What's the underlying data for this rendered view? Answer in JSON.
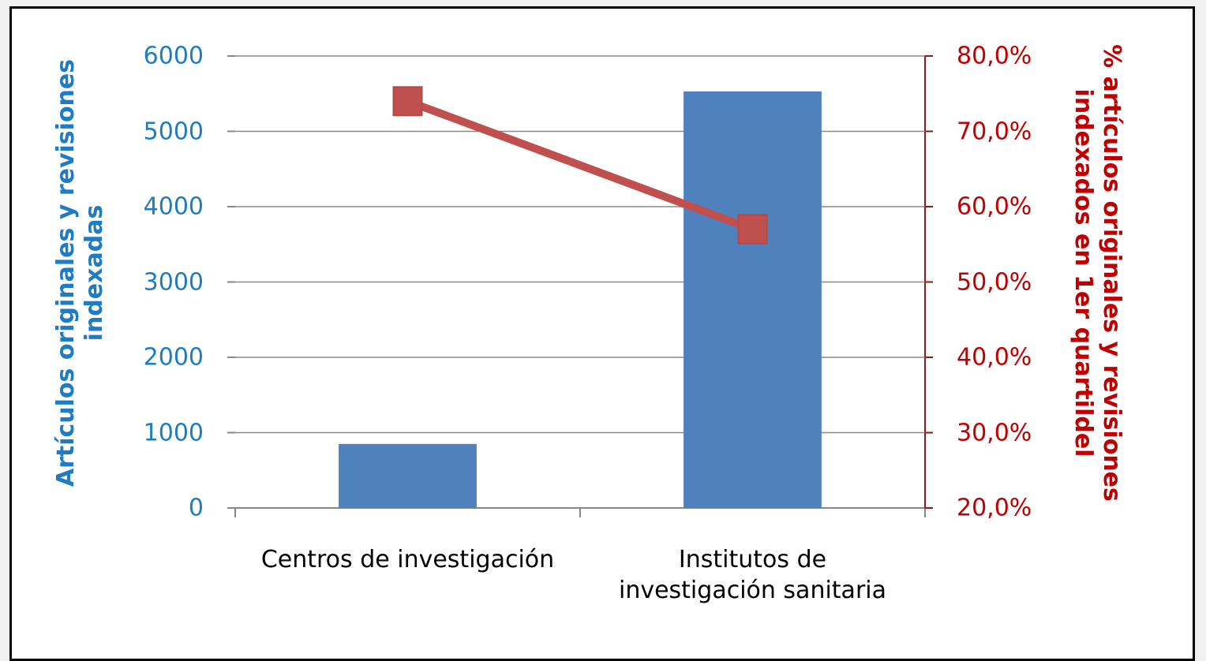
{
  "chart_data": {
    "type": "bar",
    "categories": [
      "Centros de investigación",
      "Institutos de\ninvestigación sanitaria"
    ],
    "ylabel": "Artículos originales y revisiones\nindexadas",
    "y2label": "% artículos originales y revisiones\nindexados en 1er quartildel",
    "ylim": [
      0,
      6000
    ],
    "yticks": [
      0,
      1000,
      2000,
      3000,
      4000,
      5000,
      6000
    ],
    "y2lim": [
      20,
      80
    ],
    "y2ticks": [
      {
        "value": 20,
        "label": "20,0%"
      },
      {
        "value": 30,
        "label": "30,0%"
      },
      {
        "value": 40,
        "label": "40,0%"
      },
      {
        "value": 50,
        "label": "50,0%"
      },
      {
        "value": 60,
        "label": "60,0%"
      },
      {
        "value": 70,
        "label": "70,0%"
      },
      {
        "value": 80,
        "label": "80,0%"
      }
    ],
    "grid": true,
    "series": [
      {
        "type": "bar",
        "color": "#4f81bd",
        "values": [
          850,
          5530
        ]
      },
      {
        "type": "line",
        "axis": "y2",
        "color": "#c0504d",
        "values": [
          74.0,
          57.0
        ]
      }
    ]
  }
}
